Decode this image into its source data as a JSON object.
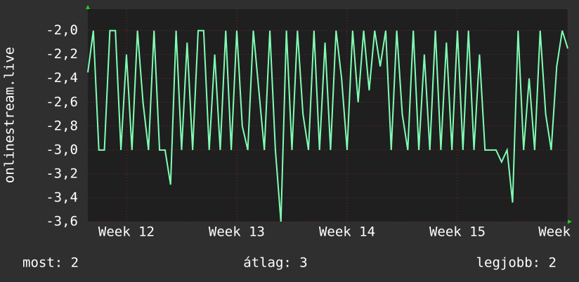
{
  "chart_data": {
    "type": "line",
    "y_label": "onlinestream.live",
    "x": [
      11.65,
      11.7,
      11.75,
      11.8,
      11.85,
      11.9,
      11.95,
      12.0,
      12.05,
      12.1,
      12.15,
      12.2,
      12.25,
      12.3,
      12.35,
      12.4,
      12.45,
      12.5,
      12.55,
      12.6,
      12.65,
      12.7,
      12.75,
      12.8,
      12.85,
      12.9,
      12.95,
      13.0,
      13.05,
      13.1,
      13.15,
      13.2,
      13.25,
      13.3,
      13.35,
      13.4,
      13.45,
      13.5,
      13.55,
      13.6,
      13.65,
      13.7,
      13.75,
      13.8,
      13.85,
      13.9,
      13.95,
      14.0,
      14.05,
      14.1,
      14.15,
      14.2,
      14.25,
      14.3,
      14.35,
      14.4,
      14.45,
      14.5,
      14.55,
      14.6,
      14.65,
      14.7,
      14.75,
      14.8,
      14.85,
      14.9,
      14.95,
      15.0,
      15.05,
      15.1,
      15.15,
      15.2,
      15.25,
      15.3,
      15.35,
      15.4,
      15.45,
      15.5,
      15.55,
      15.6,
      15.65,
      15.7,
      15.75,
      15.8,
      15.85,
      15.9,
      15.95,
      16.0
    ],
    "series": [
      {
        "color": "#80ffb4",
        "values": [
          -2.35,
          -2.0,
          -3.0,
          -3.0,
          -2.0,
          -2.0,
          -3.0,
          -2.2,
          -3.0,
          -2.0,
          -2.6,
          -3.0,
          -2.0,
          -3.0,
          -3.0,
          -3.29,
          -2.0,
          -3.0,
          -2.1,
          -3.0,
          -2.0,
          -2.0,
          -3.0,
          -2.2,
          -3.0,
          -2.0,
          -3.0,
          -2.0,
          -2.8,
          -3.0,
          -2.0,
          -2.5,
          -3.0,
          -2.0,
          -3.0,
          -3.6,
          -2.0,
          -3.0,
          -2.0,
          -2.7,
          -3.0,
          -2.0,
          -3.0,
          -2.1,
          -3.0,
          -2.0,
          -2.4,
          -3.0,
          -2.0,
          -2.6,
          -2.0,
          -2.5,
          -2.0,
          -2.3,
          -2.0,
          -3.0,
          -2.0,
          -2.7,
          -3.0,
          -2.0,
          -3.0,
          -2.2,
          -3.0,
          -2.0,
          -3.0,
          -2.1,
          -3.0,
          -2.0,
          -3.0,
          -2.0,
          -3.0,
          -2.2,
          -3.0,
          -3.0,
          -3.0,
          -3.1,
          -3.0,
          -3.44,
          -2.0,
          -3.0,
          -2.4,
          -3.0,
          -2.0,
          -2.7,
          -3.0,
          -2.3,
          -2.0,
          -2.15
        ]
      }
    ],
    "xlim": [
      11.65,
      16.0
    ],
    "xticks": [
      {
        "value": 12,
        "label": "Week 12"
      },
      {
        "value": 13,
        "label": "Week 13"
      },
      {
        "value": 14,
        "label": "Week 14"
      },
      {
        "value": 15,
        "label": "Week 15"
      },
      {
        "value": 16,
        "label": "Week"
      }
    ],
    "ylim": [
      -3.6,
      -1.82
    ],
    "yticks": [
      {
        "value": -2.0,
        "label": "-2,0"
      },
      {
        "value": -2.2,
        "label": "-2,2"
      },
      {
        "value": -2.4,
        "label": "-2,4"
      },
      {
        "value": -2.6,
        "label": "-2,6"
      },
      {
        "value": -2.8,
        "label": "-2,8"
      },
      {
        "value": -3.0,
        "label": "-3,0"
      },
      {
        "value": -3.2,
        "label": "-3,2"
      },
      {
        "value": -3.4,
        "label": "-3,4"
      },
      {
        "value": -3.6,
        "label": "-3,6"
      }
    ],
    "grid": true,
    "footer": [
      "most: 2",
      "átlag: 3",
      "legjobb: 2"
    ]
  }
}
